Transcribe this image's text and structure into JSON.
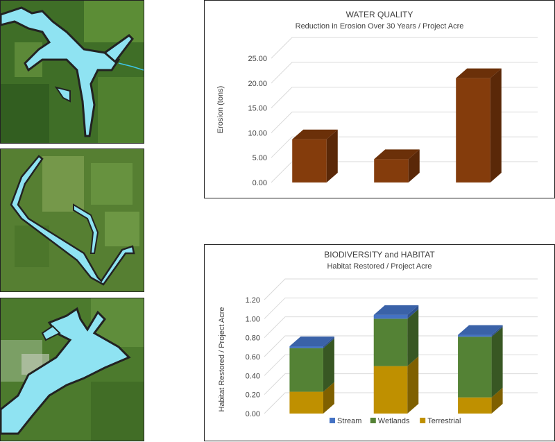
{
  "chart_data": [
    {
      "type": "bar",
      "subtype": "3d-column",
      "title": "WATER QUALITY",
      "subtitle": "Reduction in Erosion Over 30 Years / Project Acre",
      "ylabel": "Erosion (tons)",
      "ylim": [
        0,
        25
      ],
      "yticks": [
        "0.00",
        "5.00",
        "10.00",
        "15.00",
        "20.00",
        "25.00"
      ],
      "categories": [
        "",
        "",
        ""
      ],
      "values": [
        8.7,
        4.7,
        21.0
      ],
      "colors": {
        "front": "#843c0c",
        "side": "#5a2808",
        "top": "#6b3009"
      },
      "grid": true
    },
    {
      "type": "bar",
      "subtype": "3d-stacked-column",
      "title": "BIODIVERSITY and HABITAT",
      "subtitle": "Habitat Restored / Project Acre",
      "ylabel": "Habitat Restored / Project Acre",
      "ylim": [
        0,
        1.2
      ],
      "yticks": [
        "0.00",
        "0.20",
        "0.40",
        "0.60",
        "0.80",
        "1.00",
        "1.20"
      ],
      "categories": [
        "",
        "",
        ""
      ],
      "series": [
        {
          "name": "Terrestrial",
          "values": [
            0.23,
            0.5,
            0.17
          ],
          "color": "#bf9000",
          "side": "#7f6000",
          "top": "#a67d00"
        },
        {
          "name": "Wetlands",
          "values": [
            0.46,
            0.5,
            0.64
          ],
          "color": "#548235",
          "side": "#385723",
          "top": "#4a7230"
        },
        {
          "name": "Stream",
          "values": [
            0.02,
            0.04,
            0.02
          ],
          "color": "#4472c4",
          "side": "#2f528f",
          "top": "#3a62a8"
        }
      ],
      "legend_order": [
        "Stream",
        "Wetlands",
        "Terrestrial"
      ],
      "legend_placement": "bottom",
      "grid": true
    }
  ]
}
